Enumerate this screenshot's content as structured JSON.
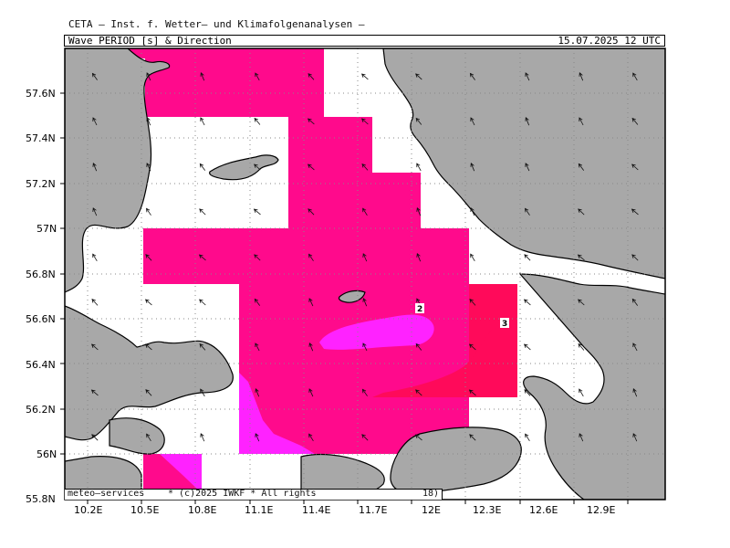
{
  "header": {
    "institute": "CETA — Inst. f. Wetter— und Klimafolgenanalysen —",
    "parameter": "Wave PERIOD [s] & Direction",
    "valid_time": "15.07.2025 12 UTC"
  },
  "footer": {
    "left": "meteo—services",
    "copyright": "* (c)2025 IWKF * All rights",
    "right": "18)"
  },
  "axes": {
    "x_ticks": [
      "10.2E",
      "10.5E",
      "10.8E",
      "11.1E",
      "11.4E",
      "11.7E",
      "12E",
      "12.3E",
      "12.6E",
      "12.9E"
    ],
    "y_ticks": [
      "57.6N",
      "57.4N",
      "57.2N",
      "57N",
      "56.8N",
      "56.6N",
      "56.4N",
      "56.2N",
      "56N",
      "55.8N"
    ]
  },
  "legend": {
    "contour_labels": [
      "2",
      "3"
    ]
  },
  "colors": {
    "land": "#a8a8a8",
    "period_band": "#ff0a8c",
    "period_low": "#ff22ff",
    "period_high": "#ff0a5a",
    "grid": "#888888"
  }
}
